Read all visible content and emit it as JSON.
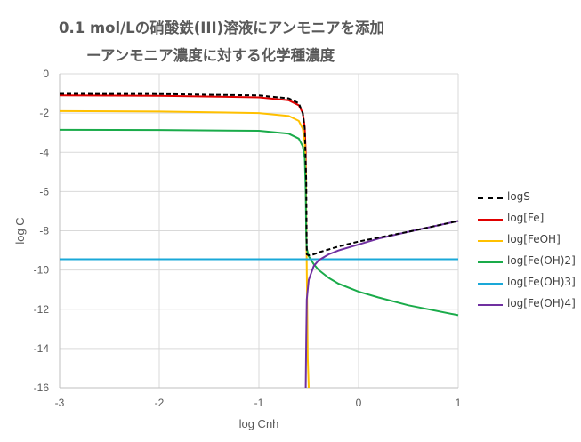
{
  "title": {
    "line1": "0.1 mol/Lの硝酸鉄(III)溶液にアンモニアを添加",
    "line2": "ーアンモニア濃度に対する化学種濃度"
  },
  "chart_data": {
    "type": "line",
    "xlabel": "log Cnh",
    "ylabel": "log C",
    "xlim": [
      -3,
      1
    ],
    "ylim": [
      -16,
      0
    ],
    "xticks": [
      -3,
      -2,
      -1,
      0,
      1
    ],
    "yticks": [
      0,
      -2,
      -4,
      -6,
      -8,
      -10,
      -12,
      -14,
      -16
    ],
    "grid": true,
    "legend_position": "right",
    "series": [
      {
        "name": "logS",
        "color": "#000000",
        "dash": true,
        "x": [
          -3,
          -2,
          -1,
          -0.7,
          -0.6,
          -0.56,
          -0.54,
          -0.525,
          -0.52,
          -0.5,
          -0.45,
          -0.4,
          -0.3,
          -0.2,
          0,
          0.2,
          0.5,
          1
        ],
        "y": [
          -1.02,
          -1.03,
          -1.1,
          -1.25,
          -1.5,
          -2.0,
          -2.8,
          -5.5,
          -9.2,
          -9.25,
          -9.2,
          -9.1,
          -8.95,
          -8.8,
          -8.55,
          -8.35,
          -8.05,
          -7.5
        ]
      },
      {
        "name": "log[Fe]",
        "color": "#e00000",
        "dash": false,
        "x": [
          -3,
          -2,
          -1,
          -0.7,
          -0.6,
          -0.56,
          -0.54,
          -0.53,
          -0.525
        ],
        "y": [
          -1.1,
          -1.12,
          -1.2,
          -1.35,
          -1.6,
          -2.0,
          -2.7,
          -4.0,
          -8.0
        ]
      },
      {
        "name": "log[FeOH]",
        "color": "#ffc000",
        "dash": false,
        "x": [
          -3,
          -2,
          -1,
          -0.7,
          -0.6,
          -0.56,
          -0.54,
          -0.53,
          -0.52,
          -0.51,
          -0.5
        ],
        "y": [
          -1.9,
          -1.92,
          -2.0,
          -2.15,
          -2.4,
          -2.8,
          -3.5,
          -5.0,
          -10.0,
          -14.5,
          -16.0
        ]
      },
      {
        "name": "log[Fe(OH)2]",
        "color": "#1aab4a",
        "dash": false,
        "x": [
          -3,
          -2,
          -1,
          -0.7,
          -0.6,
          -0.56,
          -0.54,
          -0.53,
          -0.525,
          -0.52,
          -0.5,
          -0.45,
          -0.4,
          -0.3,
          -0.2,
          0,
          0.2,
          0.5,
          1
        ],
        "y": [
          -2.85,
          -2.86,
          -2.9,
          -3.05,
          -3.3,
          -3.7,
          -4.3,
          -6.0,
          -8.3,
          -8.9,
          -9.3,
          -9.7,
          -10.0,
          -10.4,
          -10.7,
          -11.1,
          -11.4,
          -11.8,
          -12.3
        ]
      },
      {
        "name": "log[Fe(OH)3]",
        "color": "#1aa8d8",
        "dash": false,
        "x": [
          -3,
          1
        ],
        "y": [
          -9.45,
          -9.45
        ]
      },
      {
        "name": "log[Fe(OH)4]",
        "color": "#7030a0",
        "dash": false,
        "x": [
          -0.53,
          -0.525,
          -0.52,
          -0.5,
          -0.45,
          -0.4,
          -0.3,
          -0.2,
          0,
          0.2,
          0.5,
          1
        ],
        "y": [
          -16.0,
          -13.5,
          -11.5,
          -10.5,
          -9.8,
          -9.5,
          -9.2,
          -9.0,
          -8.7,
          -8.4,
          -8.05,
          -7.5
        ]
      }
    ]
  }
}
